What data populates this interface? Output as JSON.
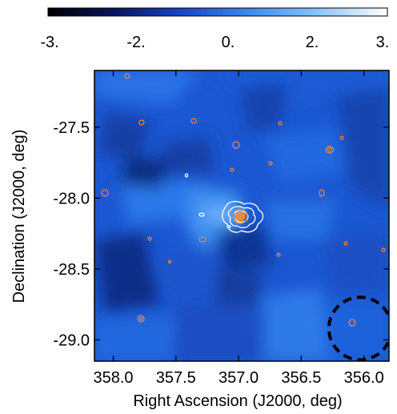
{
  "chart_data": {
    "type": "heatmap",
    "title": "",
    "xlabel": "Right Ascension (J2000, deg)",
    "ylabel": "Declination (J2000, deg)",
    "colorbar": {
      "range": [
        -3,
        3
      ],
      "tick_labels": [
        "-3.",
        "-2.",
        "0.",
        "2.",
        "3."
      ],
      "tick_values": [
        -3,
        -2,
        0,
        2,
        3
      ],
      "colors": [
        "#000000",
        "#0a1560",
        "#1747c9",
        "#3d8cf0",
        "#8cc6ff",
        "#ffffff"
      ]
    },
    "x_axis": {
      "range": [
        358.15,
        355.8
      ],
      "reversed": true,
      "ticks": [
        358.0,
        357.5,
        357.0,
        356.5,
        356.0
      ],
      "tick_labels": [
        "358.0",
        "357.5",
        "357.0",
        "356.5",
        "356.0"
      ]
    },
    "y_axis": {
      "range": [
        -29.15,
        -27.1
      ],
      "ticks": [
        -27.5,
        -28.0,
        -28.5,
        -29.0
      ],
      "tick_labels": [
        "-27.5",
        "-28.0",
        "-28.5",
        "-29.0"
      ]
    },
    "source_position": {
      "ra": 356.9,
      "dec": -28.15
    },
    "beam_circle": {
      "ra": 356.03,
      "dec": -28.92,
      "radius_deg": 0.25,
      "style": "dashed",
      "color": "#000000"
    },
    "contour_colors": {
      "optical": "#ffffff",
      "radio": "#f08a3a"
    },
    "grid": false,
    "legend": "none"
  }
}
